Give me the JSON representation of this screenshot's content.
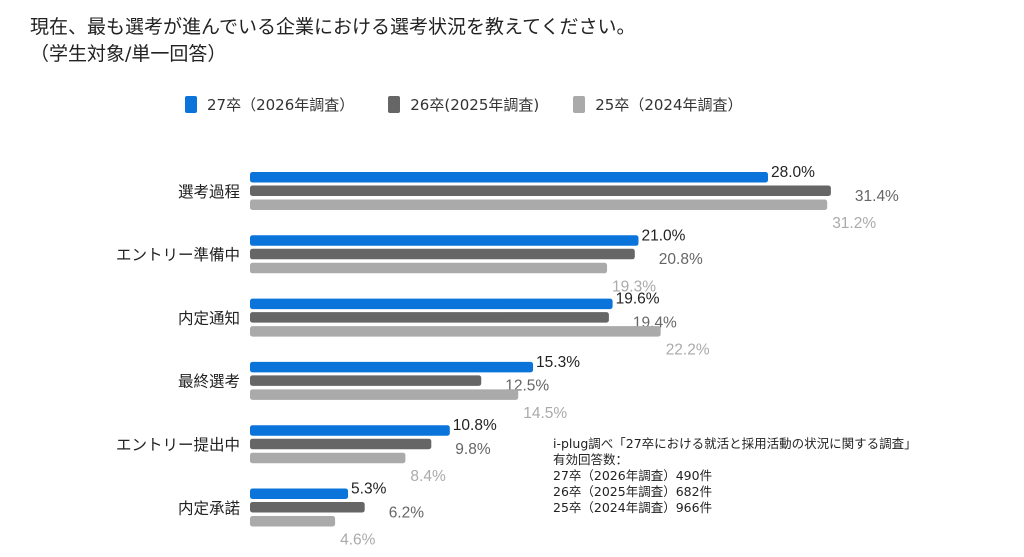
{
  "title": {
    "line1": "現在、最も選考が進んでいる企業における選考状況を教えてください。",
    "line2": "（学生対象/単一回答）"
  },
  "colors": {
    "s27": "#0a74da",
    "s26": "#666666",
    "s25": "#aaaaaa"
  },
  "chart_data": {
    "type": "bar",
    "orientation": "horizontal",
    "categories": [
      "選考過程",
      "エントリー準備中",
      "内定通知",
      "最終選考",
      "エントリー提出中",
      "内定承諾"
    ],
    "series": [
      {
        "name": "27卒（2026年調査）",
        "values": [
          28.0,
          21.0,
          19.6,
          15.3,
          10.8,
          5.3
        ]
      },
      {
        "name": "26卒(2025年調査)",
        "values": [
          31.4,
          20.8,
          19.4,
          12.5,
          9.8,
          6.2
        ]
      },
      {
        "name": "25卒（2024年調査）",
        "values": [
          31.2,
          19.3,
          22.2,
          14.5,
          8.4,
          4.6
        ]
      }
    ],
    "value_suffix": "%",
    "legend": "top",
    "grid": false,
    "xlim": [
      0,
      35
    ]
  },
  "note": {
    "source": "i-plug調べ「27卒における就活と採用活動の状況に関する調査」",
    "label": "有効回答数：",
    "counts": [
      "27卒（2026年調査）490件",
      "26卒（2025年調査）682件",
      "25卒（2024年調査）966件"
    ]
  }
}
